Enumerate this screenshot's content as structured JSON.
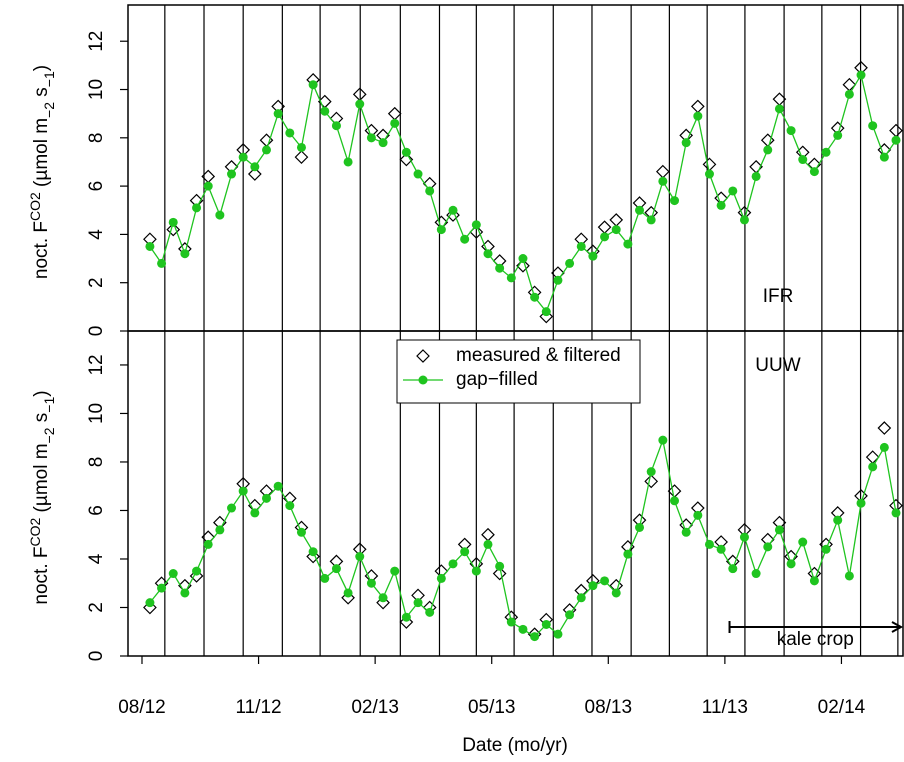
{
  "chart_data": [
    {
      "type": "line",
      "panel_label": "IFR",
      "ylabel_parts": [
        "noct. F",
        "CO2",
        " (µmol m",
        "−2",
        " s",
        "−1",
        ")"
      ],
      "x": [
        2012.6,
        2012.625,
        2012.65,
        2012.675,
        2012.7,
        2012.725,
        2012.75,
        2012.775,
        2012.8,
        2012.825,
        2012.85,
        2012.875,
        2012.9,
        2012.925,
        2012.95,
        2012.975,
        2013.0,
        2013.025,
        2013.05,
        2013.075,
        2013.1,
        2013.125,
        2013.15,
        2013.175,
        2013.2,
        2013.225,
        2013.25,
        2013.275,
        2013.3,
        2013.325,
        2013.35,
        2013.375,
        2013.4,
        2013.425,
        2013.45,
        2013.475,
        2013.5,
        2013.525,
        2013.55,
        2013.575,
        2013.6,
        2013.625,
        2013.65,
        2013.675,
        2013.7,
        2013.725,
        2013.75,
        2013.775,
        2013.8,
        2013.825,
        2013.85,
        2013.875,
        2013.9,
        2013.925,
        2013.95,
        2013.975,
        2014.0,
        2014.025,
        2014.05,
        2014.075,
        2014.1,
        2014.125,
        2014.15,
        2014.175,
        2014.2
      ],
      "series": [
        {
          "name": "measured & filtered",
          "style": "markers",
          "color": "#000000",
          "values": [
            3.8,
            null,
            4.2,
            3.4,
            5.4,
            6.4,
            null,
            6.8,
            7.5,
            6.5,
            7.9,
            9.3,
            null,
            7.2,
            10.4,
            9.5,
            8.8,
            null,
            9.8,
            8.3,
            8.1,
            9.0,
            7.1,
            null,
            6.1,
            4.5,
            4.8,
            null,
            4.1,
            3.5,
            2.9,
            null,
            2.7,
            1.6,
            0.6,
            2.4,
            null,
            3.8,
            3.3,
            4.3,
            4.6,
            null,
            5.3,
            4.9,
            6.6,
            null,
            8.1,
            9.3,
            6.9,
            5.5,
            null,
            4.9,
            6.8,
            7.9,
            9.6,
            null,
            7.4,
            6.9,
            null,
            8.4,
            10.2,
            10.9,
            null,
            7.5,
            8.3
          ]
        },
        {
          "name": "gap−filled",
          "style": "lines+markers",
          "color": "#1fc41f",
          "values": [
            3.5,
            2.8,
            4.5,
            3.2,
            5.1,
            6.0,
            4.8,
            6.5,
            7.2,
            6.8,
            7.5,
            9.0,
            8.2,
            7.6,
            10.2,
            9.1,
            8.5,
            7.0,
            9.4,
            8.0,
            7.8,
            8.6,
            7.4,
            6.5,
            5.8,
            4.2,
            5.0,
            3.8,
            4.4,
            3.2,
            2.6,
            2.2,
            3.0,
            1.4,
            0.8,
            2.1,
            2.8,
            3.5,
            3.1,
            3.9,
            4.2,
            3.6,
            5.0,
            4.6,
            6.2,
            5.4,
            7.8,
            8.9,
            6.5,
            5.2,
            5.8,
            4.6,
            6.4,
            7.5,
            9.2,
            8.3,
            7.1,
            6.6,
            7.4,
            8.1,
            9.8,
            10.6,
            8.5,
            7.2,
            7.9
          ]
        }
      ],
      "xlim": [
        2012.553,
        2014.215
      ],
      "ylim": [
        0,
        13.5
      ],
      "yticks": [
        0,
        2,
        4,
        6,
        8,
        10,
        12
      ],
      "vlines": [
        2012.632,
        2012.716,
        2012.8,
        2012.884,
        2012.965,
        2013.051,
        2013.137,
        2013.221,
        2013.3,
        2013.381,
        2013.465,
        2013.548,
        2013.632,
        2013.714,
        2013.795,
        2013.876,
        2013.96,
        2014.041,
        2014.124,
        2014.204
      ]
    },
    {
      "type": "line",
      "panel_label": "UUW",
      "ylabel_parts": [
        "noct. F",
        "CO2",
        " (µmol m",
        "−2",
        " s",
        "−1",
        ")"
      ],
      "xlabel": "Date (mo/yr)",
      "legend": "top-center",
      "x": [
        2012.6,
        2012.625,
        2012.65,
        2012.675,
        2012.7,
        2012.725,
        2012.75,
        2012.775,
        2012.8,
        2012.825,
        2012.85,
        2012.875,
        2012.9,
        2012.925,
        2012.95,
        2012.975,
        2013.0,
        2013.025,
        2013.05,
        2013.075,
        2013.1,
        2013.125,
        2013.15,
        2013.175,
        2013.2,
        2013.225,
        2013.25,
        2013.275,
        2013.3,
        2013.325,
        2013.35,
        2013.375,
        2013.4,
        2013.425,
        2013.45,
        2013.475,
        2013.5,
        2013.525,
        2013.55,
        2013.575,
        2013.6,
        2013.625,
        2013.65,
        2013.675,
        2013.7,
        2013.725,
        2013.75,
        2013.775,
        2013.8,
        2013.825,
        2013.85,
        2013.875,
        2013.9,
        2013.925,
        2013.95,
        2013.975,
        2014.0,
        2014.025,
        2014.05,
        2014.075,
        2014.1,
        2014.125,
        2014.15,
        2014.175,
        2014.2
      ],
      "series": [
        {
          "name": "measured & filtered",
          "style": "markers",
          "color": "#000000",
          "values": [
            2.0,
            3.0,
            null,
            2.9,
            3.3,
            4.9,
            5.5,
            null,
            7.1,
            6.2,
            6.8,
            null,
            6.5,
            5.3,
            4.1,
            null,
            3.9,
            2.4,
            4.4,
            3.3,
            2.2,
            null,
            1.4,
            2.5,
            2.0,
            3.5,
            null,
            4.6,
            3.8,
            5.0,
            3.4,
            1.6,
            null,
            0.9,
            1.5,
            null,
            1.9,
            2.7,
            3.1,
            null,
            2.9,
            4.5,
            5.6,
            7.2,
            null,
            6.8,
            5.4,
            6.1,
            null,
            4.7,
            3.9,
            5.2,
            null,
            4.8,
            5.5,
            4.1,
            null,
            3.4,
            4.6,
            5.9,
            null,
            6.6,
            8.2,
            9.4,
            6.2
          ]
        },
        {
          "name": "gap−filled",
          "style": "lines+markers",
          "color": "#1fc41f",
          "values": [
            2.2,
            2.8,
            3.4,
            2.6,
            3.5,
            4.6,
            5.2,
            6.1,
            6.8,
            5.9,
            6.5,
            7.0,
            6.2,
            5.1,
            4.3,
            3.2,
            3.6,
            2.6,
            4.1,
            3.0,
            2.4,
            3.5,
            1.6,
            2.2,
            1.8,
            3.2,
            3.8,
            4.3,
            3.5,
            4.6,
            3.7,
            1.4,
            1.1,
            0.8,
            1.3,
            0.9,
            1.7,
            2.4,
            2.9,
            3.1,
            2.6,
            4.2,
            5.3,
            7.6,
            8.9,
            6.4,
            5.1,
            5.8,
            4.6,
            4.4,
            3.6,
            4.9,
            3.4,
            4.5,
            5.2,
            3.8,
            4.7,
            3.1,
            4.4,
            5.6,
            3.3,
            6.3,
            7.8,
            8.6,
            5.9
          ]
        }
      ],
      "xlim": [
        2012.553,
        2014.215
      ],
      "ylim": [
        0,
        13.4
      ],
      "yticks": [
        0,
        2,
        4,
        6,
        8,
        10,
        12
      ],
      "xticks": [
        {
          "value": 2012.583,
          "label": "08/12"
        },
        {
          "value": 2012.833,
          "label": "11/12"
        },
        {
          "value": 2013.083,
          "label": "02/13"
        },
        {
          "value": 2013.333,
          "label": "05/13"
        },
        {
          "value": 2013.583,
          "label": "08/13"
        },
        {
          "value": 2013.833,
          "label": "11/13"
        },
        {
          "value": 2014.083,
          "label": "02/14"
        }
      ],
      "vlines": [
        2012.632,
        2012.716,
        2012.8,
        2012.884,
        2012.965,
        2013.051,
        2013.137,
        2013.221,
        2013.3,
        2013.381,
        2013.465,
        2013.548,
        2013.632,
        2013.714,
        2013.795,
        2013.876,
        2013.96,
        2014.041,
        2014.124,
        2014.204
      ],
      "span": {
        "label": "kale crop",
        "start": 2013.843,
        "end": 2014.215
      }
    }
  ]
}
